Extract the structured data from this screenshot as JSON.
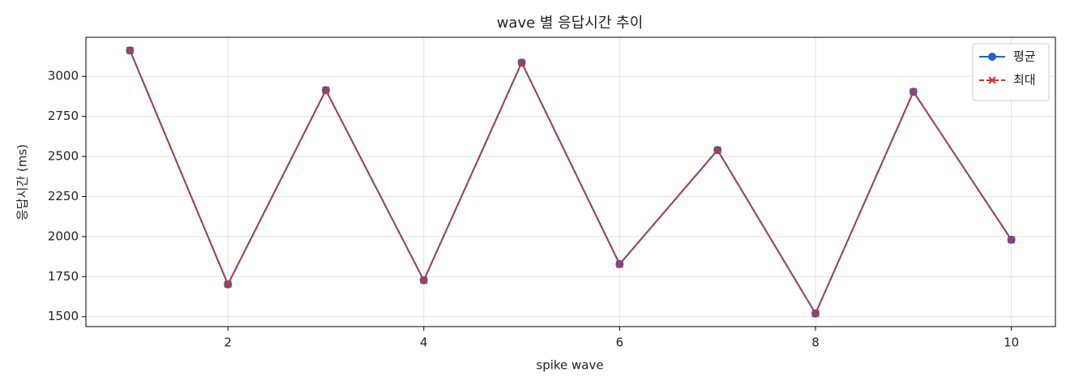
{
  "chart_data": {
    "type": "line",
    "title": "wave 별 응답시간 추이",
    "x_label": "spike wave",
    "y_label": "응답시간 (ms)",
    "x": [
      1,
      2,
      3,
      4,
      5,
      6,
      7,
      8,
      9,
      10
    ],
    "series": [
      {
        "name": "평균",
        "color": "#1f66c0",
        "values": [
          3162,
          1702,
          2914,
          1727,
          3086,
          1828,
          2540,
          1520,
          2904,
          1980
        ]
      },
      {
        "name": "최대",
        "color": "#d62f2f",
        "values": [
          3162,
          1702,
          2914,
          1727,
          3086,
          1828,
          2540,
          1520,
          2904,
          1980
        ]
      }
    ],
    "xlim": [
      0.55,
      10.45
    ],
    "xticks": [
      2,
      4,
      6,
      8,
      10
    ],
    "ylim": [
      1438,
      3244
    ],
    "yticks": [
      1500,
      1750,
      2000,
      2250,
      2500,
      2750,
      3000
    ],
    "grid": true,
    "legend": "upper-right"
  }
}
